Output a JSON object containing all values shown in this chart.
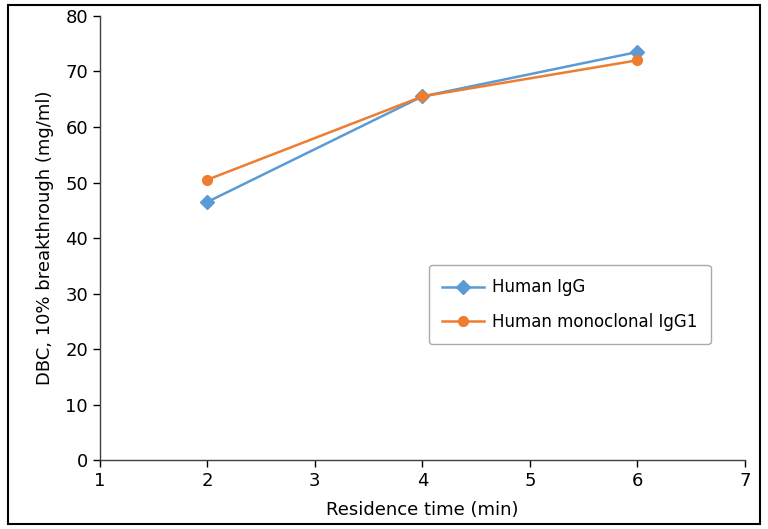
{
  "x": [
    2,
    4,
    6
  ],
  "human_igg": [
    46.5,
    65.5,
    73.5
  ],
  "human_mono_igg1": [
    50.5,
    65.5,
    72.0
  ],
  "igg_color": "#5B9BD5",
  "mono_color": "#ED7D31",
  "igg_label": "Human IgG",
  "mono_label": "Human monoclonal IgG1",
  "xlabel": "Residence time (min)",
  "ylabel": "DBC, 10% breakthrough (mg/ml)",
  "xlim": [
    1,
    7
  ],
  "ylim": [
    0,
    80
  ],
  "xticks": [
    1,
    2,
    3,
    4,
    5,
    6,
    7
  ],
  "yticks": [
    0,
    10,
    20,
    30,
    40,
    50,
    60,
    70,
    80
  ],
  "igg_marker": "D",
  "mono_marker": "o",
  "markersize": 7,
  "linewidth": 1.8,
  "legend_fontsize": 12,
  "axis_label_fontsize": 13,
  "tick_fontsize": 13,
  "figure_bg": "#ffffff",
  "axes_bg": "#ffffff",
  "spine_color": "#404040"
}
